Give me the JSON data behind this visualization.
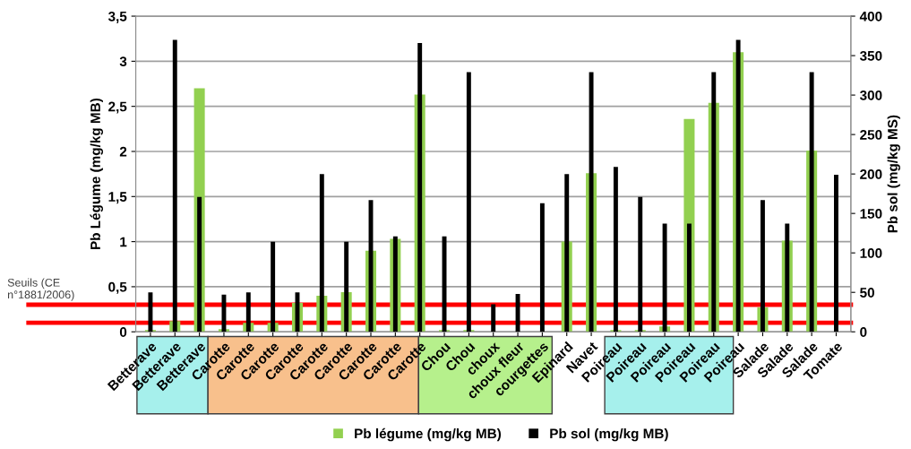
{
  "chart_data": {
    "type": "bar",
    "categories": [
      "Betterave",
      "Betterave",
      "Betterave",
      "Carotte",
      "Carotte",
      "Carotte",
      "Carotte",
      "Carotte",
      "Carotte",
      "Carotte",
      "Carotte",
      "Carotte",
      "Chou",
      "Chou",
      "choux",
      "choux fleur",
      "courgettes",
      "Epinard",
      "Navet",
      "Poireau",
      "Poireau",
      "Poireau",
      "Poireau",
      "Poireau",
      "Poireau",
      "Salade",
      "Salade",
      "Salade",
      "Tomate"
    ],
    "series": [
      {
        "name": "Pb légume (mg/kg MB)",
        "color": "#92d050",
        "values": [
          0.02,
          0.12,
          2.7,
          0.03,
          0.1,
          0.1,
          0.32,
          0.4,
          0.44,
          0.9,
          1.03,
          2.63,
          0.02,
          0.02,
          null,
          null,
          null,
          1.0,
          1.76,
          0.02,
          0.02,
          0.06,
          2.36,
          2.54,
          3.1,
          0.27,
          1.01,
          2.01,
          null
        ]
      },
      {
        "name": "Pb sol (mg/kg MB)",
        "color": "#000000",
        "axis": "y2",
        "values": [
          50,
          370,
          171,
          47,
          50,
          114,
          50,
          200,
          114,
          167,
          121,
          366,
          121,
          329,
          35,
          48,
          163,
          200,
          329,
          209,
          171,
          137,
          137,
          329,
          370,
          167,
          137,
          329,
          199
        ]
      }
    ],
    "ylabel": "Pb Légume (mg/kg MB)",
    "y2label": "Pb sol (mg/kg MS)",
    "ylim": [
      0,
      3.5
    ],
    "yticks": [
      0,
      {
        "value": 0.5,
        "label": "0,5"
      },
      1,
      {
        "value": 1.5,
        "label": "1,5"
      },
      2,
      {
        "value": 2.5,
        "label": "2,5"
      },
      3,
      {
        "value": 3.5,
        "label": "3,5"
      }
    ],
    "y2lim": [
      0,
      400
    ],
    "y2ticks": [
      0,
      50,
      100,
      150,
      200,
      250,
      300,
      350,
      400
    ],
    "ref_lines": [
      {
        "axis": "y",
        "value": 0.3,
        "color": "#ff0000"
      },
      {
        "axis": "y",
        "value": 0.1,
        "color": "#ff0000"
      }
    ],
    "annotations": [
      "Seuils (CE n°1881/2006)"
    ],
    "grid": "y",
    "legend": "bottom"
  }
}
